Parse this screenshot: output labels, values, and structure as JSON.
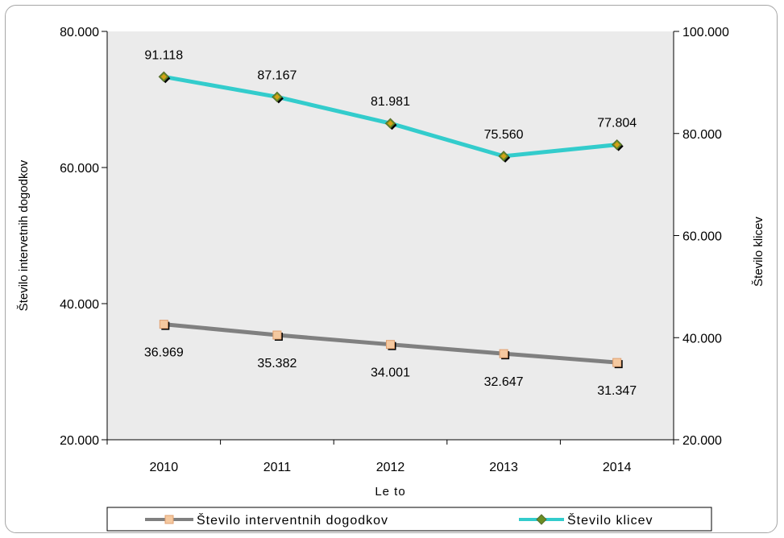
{
  "chart_data": {
    "type": "line",
    "categories": [
      "2010",
      "2011",
      "2012",
      "2013",
      "2014"
    ],
    "xlabel": "Le to",
    "ylabel_left": "Število intervetnih dogodkov",
    "ylabel_right": "Število klicev",
    "ylim_left": [
      20000,
      80000
    ],
    "ylim_right": [
      20000,
      100000
    ],
    "yticks_left": [
      "20.000",
      "40.000",
      "60.000",
      "80.000"
    ],
    "yticks_right": [
      "20.000",
      "40.000",
      "60.000",
      "80.000",
      "100.000"
    ],
    "legend_position": "bottom",
    "series": [
      {
        "name": "Število interventnih dogodkov",
        "axis": "left",
        "values": [
          36969,
          35382,
          34001,
          32647,
          31347
        ],
        "labels": [
          "36.969",
          "35.382",
          "34.001",
          "32.647",
          "31.347"
        ],
        "color": "#808080",
        "marker_color": "#f5c9a0",
        "marker": "square"
      },
      {
        "name": "Število klicev",
        "axis": "right",
        "values": [
          91118,
          87167,
          81981,
          75560,
          77804
        ],
        "labels": [
          "91.118",
          "87.167",
          "81.981",
          "75.560",
          "77.804"
        ],
        "color": "#33cccc",
        "marker_color": "#6b8e23",
        "marker": "diamond"
      }
    ],
    "plot_background": "#ebebeb"
  }
}
